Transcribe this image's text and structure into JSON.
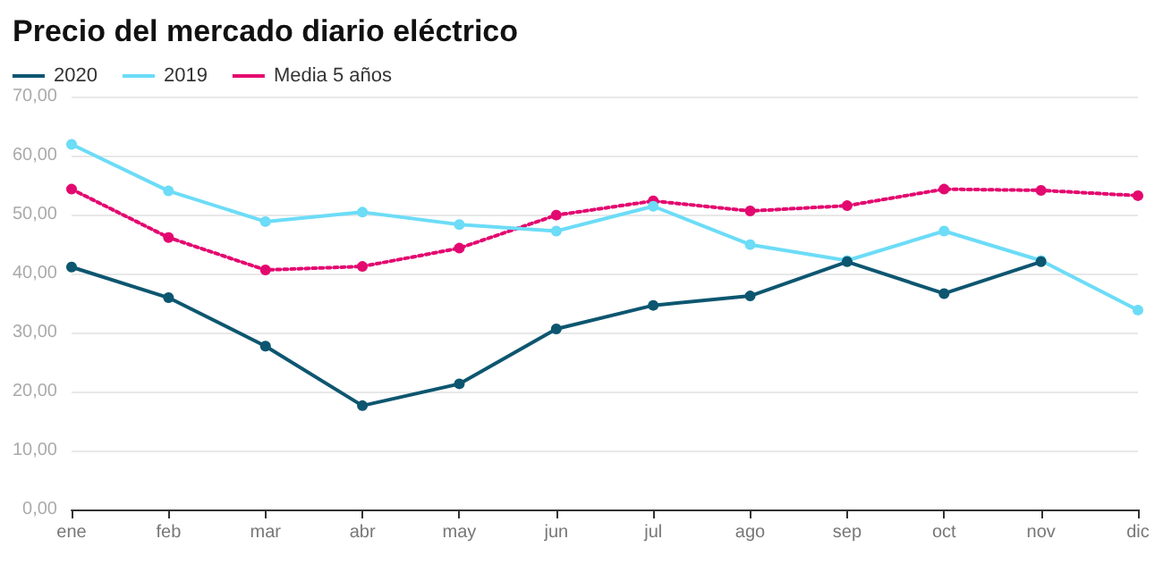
{
  "chart_data": {
    "type": "line",
    "title": "Precio del mercado diario eléctrico",
    "categories": [
      "ene",
      "feb",
      "mar",
      "abr",
      "may",
      "jun",
      "jul",
      "ago",
      "sep",
      "oct",
      "nov",
      "dic"
    ],
    "series": [
      {
        "name": "2020",
        "color": "#0d5670",
        "values": [
          41.1,
          35.9,
          27.7,
          17.6,
          21.3,
          30.6,
          34.6,
          36.2,
          42.0,
          36.6,
          42.0,
          null
        ]
      },
      {
        "name": "2019",
        "color": "#6cdcf7",
        "values": [
          61.9,
          54.0,
          48.8,
          50.4,
          48.3,
          47.2,
          51.4,
          44.9,
          42.2,
          47.2,
          42.2,
          33.8
        ]
      },
      {
        "name": "Media 5 años",
        "color": "#e3086f",
        "line_style": "dotted",
        "values": [
          54.3,
          46.1,
          40.6,
          41.2,
          44.3,
          49.9,
          52.3,
          50.6,
          51.5,
          54.3,
          54.1,
          53.2
        ]
      }
    ],
    "ylim": [
      0,
      70
    ],
    "yticks": [
      {
        "value": 0,
        "label": "0,00"
      },
      {
        "value": 10,
        "label": "10,00"
      },
      {
        "value": 20,
        "label": "20,00"
      },
      {
        "value": 30,
        "label": "30,00"
      },
      {
        "value": 40,
        "label": "40,00"
      },
      {
        "value": 50,
        "label": "50,00"
      },
      {
        "value": 60,
        "label": "60,00"
      },
      {
        "value": 70,
        "label": "70,00"
      }
    ],
    "grid": "y",
    "legend": "top left",
    "marker": "circle",
    "line_style": "solid"
  }
}
